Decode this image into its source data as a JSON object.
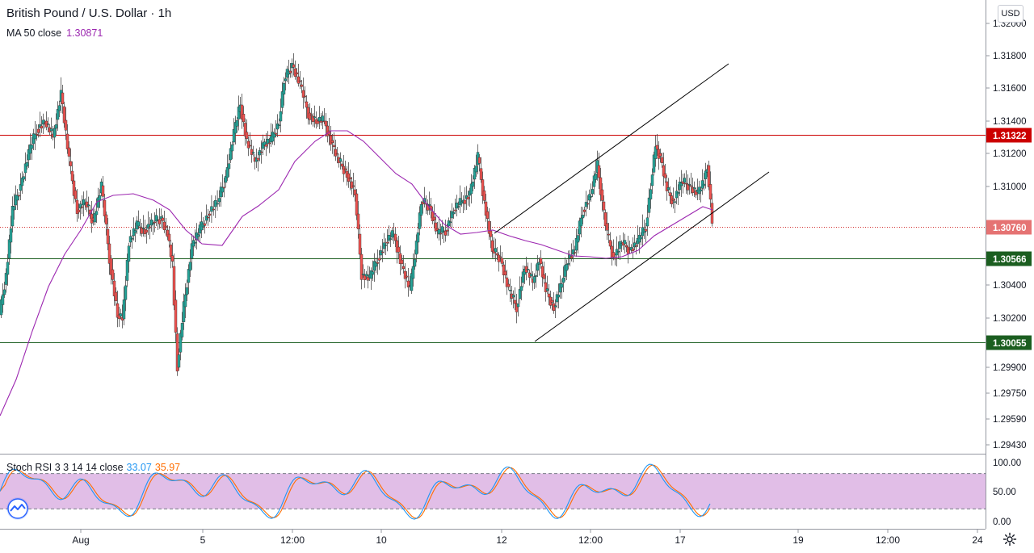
{
  "header": {
    "symbol_title": "British Pound / U.S. Dollar · 1h",
    "ma_label": "MA 50 close",
    "ma_value": "1.30871",
    "currency_button": "USD"
  },
  "stoch_legend": {
    "label": "Stoch RSI 3 3 14 14 close",
    "k_value": "33.07",
    "d_value": "35.97"
  },
  "colors": {
    "bull": "#26a69a",
    "bear": "#ef5350",
    "ma": "#9c27b0",
    "k": "#2196f3",
    "d": "#ff6d00",
    "resistance": "#cc0000",
    "support": "#1b5e20",
    "stoch_band": "#e1bee7"
  },
  "chart_data": [
    {
      "type": "candlestick",
      "title": "British Pound / U.S. Dollar · 1h",
      "y_axis_ticks": [
        "1.32000",
        "1.31800",
        "1.31600",
        "1.31400",
        "1.31200",
        "1.31000",
        "1.30400",
        "1.30200",
        "1.29900",
        "1.29750",
        "1.29590",
        "1.29430"
      ],
      "ylim": [
        1.2943,
        1.3201
      ],
      "x_axis_ticks": [
        "Aug",
        "5",
        "12:00",
        "10",
        "12",
        "12:00",
        "17",
        "19",
        "12:00",
        "24"
      ],
      "current_price": "1.30760",
      "series": [
        {
          "name": "MA 50 close",
          "value": "1.30871"
        }
      ],
      "horizontal_levels": [
        {
          "label": "1.31322",
          "value": 1.31322,
          "color": "#cc0000"
        },
        {
          "label": "1.30760",
          "value": 1.3076,
          "color": "#d32f2f",
          "style": "dotted"
        },
        {
          "label": "1.30566",
          "value": 1.30566,
          "color": "#1b5e20"
        },
        {
          "label": "1.30055",
          "value": 1.30055,
          "color": "#1b5e20"
        }
      ],
      "trend_channel": {
        "upper": [
          [
            1.3072,
            1.3176
          ]
        ],
        "lower": [
          [
            1.30055,
            1.3109
          ]
        ]
      }
    },
    {
      "type": "line",
      "title": "Stoch RSI 3 3 14 14 close",
      "y_axis_ticks": [
        "100.00",
        "50.00",
        "0.00"
      ],
      "ylim": [
        0,
        100
      ],
      "band": [
        20,
        80
      ],
      "series": [
        {
          "name": "K",
          "last": 33.07
        },
        {
          "name": "D",
          "last": 35.97
        }
      ]
    }
  ]
}
